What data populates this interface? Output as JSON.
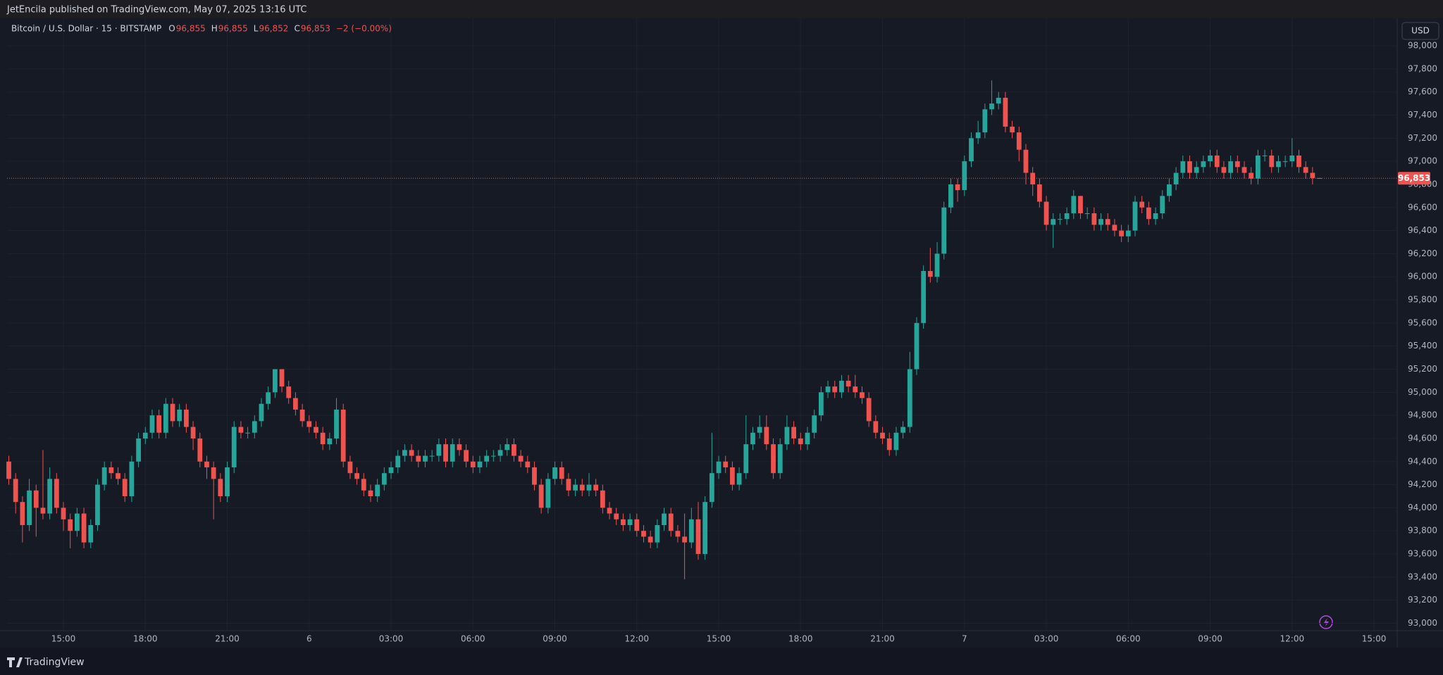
{
  "header": {
    "publisher": "JetEncila published on TradingView.com, May 07, 2025 13:16 UTC"
  },
  "footer": {
    "brand": "TradingView"
  },
  "chart_data": {
    "type": "candlestick",
    "title": "Bitcoin / U.S. Dollar · 15 · BITSTAMP",
    "legend_values": [
      {
        "label": "O",
        "value": "96,855"
      },
      {
        "label": "H",
        "value": "96,855"
      },
      {
        "label": "L",
        "value": "96,852"
      },
      {
        "label": "C",
        "value": "96,853"
      }
    ],
    "change": "−2 (−0.00%)",
    "currency": "USD",
    "up_color": "#26a69a",
    "down_color": "#ef5350",
    "grid": true,
    "open": [
      94400,
      94250,
      94050,
      93850,
      94150,
      94000,
      93950,
      94250,
      94000,
      93900,
      93800,
      93950,
      93700,
      93850,
      94200,
      94350,
      94300,
      94250,
      94100,
      94400,
      94600,
      94650,
      94800,
      94650,
      94900,
      94750,
      94850,
      94700,
      94600,
      94400,
      94350,
      94250,
      94100,
      94350,
      94700,
      94650,
      94650,
      94750,
      94900,
      95000,
      95200,
      95050,
      94950,
      94850,
      94750,
      94700,
      94650,
      94550,
      94600,
      94850,
      94400,
      94300,
      94250,
      94150,
      94100,
      94200,
      94300,
      94350,
      94450,
      94500,
      94450,
      94400,
      94450,
      94450,
      94550,
      94400,
      94550,
      94500,
      94400,
      94350,
      94400,
      94450,
      94450,
      94500,
      94550,
      94450,
      94400,
      94350,
      94200,
      94000,
      94250,
      94350,
      94250,
      94150,
      94200,
      94150,
      94200,
      94150,
      94000,
      93950,
      93900,
      93850,
      93900,
      93800,
      93750,
      93700,
      93850,
      93950,
      93800,
      93750,
      93700,
      93900,
      93600,
      94050,
      94300,
      94400,
      94350,
      94200,
      94300,
      94550,
      94650,
      94700,
      94550,
      94300,
      94550,
      94700,
      94600,
      94550,
      94650,
      94800,
      95000,
      95050,
      95000,
      95100,
      95050,
      95000,
      94950,
      94750,
      94650,
      94600,
      94500,
      94650,
      94700,
      95200,
      95600,
      96050,
      96000,
      96200,
      96600,
      96800,
      96750,
      97000,
      97200,
      97250,
      97450,
      97500,
      97550,
      97300,
      97250,
      97100,
      96900,
      96800,
      96650,
      96450,
      96500,
      96500,
      96550,
      96700,
      96550,
      96550,
      96450,
      96500,
      96450,
      96400,
      96350,
      96400,
      96650,
      96600,
      96500,
      96550,
      96700,
      96800,
      96900,
      97000,
      96900,
      96950,
      97000,
      97050,
      96950,
      96900,
      97000,
      96950,
      96900,
      96850,
      97050,
      97050,
      96950,
      97000,
      97000,
      97050,
      96950,
      96900,
      96855
    ],
    "high": [
      94450,
      94300,
      94100,
      94250,
      94200,
      94500,
      94350,
      94300,
      94050,
      93950,
      94000,
      94000,
      93900,
      94250,
      94400,
      94400,
      94350,
      94300,
      94450,
      94650,
      94700,
      94850,
      94850,
      94950,
      94950,
      94900,
      94900,
      94750,
      94650,
      94450,
      94400,
      94300,
      94400,
      94750,
      94750,
      94700,
      94800,
      94950,
      95050,
      95200,
      95200,
      95100,
      95000,
      94900,
      94800,
      94750,
      94700,
      94650,
      94950,
      94900,
      94450,
      94350,
      94300,
      94200,
      94250,
      94350,
      94400,
      94500,
      94550,
      94550,
      94500,
      94500,
      94500,
      94600,
      94600,
      94600,
      94600,
      94550,
      94450,
      94450,
      94500,
      94500,
      94550,
      94600,
      94600,
      94500,
      94450,
      94400,
      94250,
      94300,
      94400,
      94400,
      94300,
      94250,
      94250,
      94300,
      94250,
      94200,
      94050,
      94000,
      93950,
      93950,
      93950,
      93850,
      93800,
      93900,
      94000,
      94000,
      93850,
      93950,
      94000,
      94050,
      94100,
      94650,
      94450,
      94450,
      94400,
      94350,
      94800,
      94700,
      94800,
      94800,
      94600,
      94600,
      94800,
      94750,
      94650,
      94700,
      94850,
      95050,
      95100,
      95100,
      95150,
      95150,
      95150,
      95050,
      95000,
      94800,
      94700,
      94650,
      94700,
      94750,
      95350,
      95650,
      96100,
      96250,
      96300,
      96650,
      96850,
      96850,
      97050,
      97250,
      97350,
      97500,
      97700,
      97600,
      97600,
      97350,
      97300,
      97150,
      96950,
      96850,
      96700,
      96550,
      96550,
      96600,
      96750,
      96700,
      96600,
      96600,
      96550,
      96550,
      96500,
      96450,
      96450,
      96700,
      96700,
      96650,
      96600,
      96750,
      96850,
      96950,
      97050,
      97050,
      97000,
      97050,
      97100,
      97100,
      97000,
      97050,
      97050,
      97000,
      96950,
      97100,
      97100,
      97100,
      97050,
      97050,
      97200,
      97100,
      97000,
      96950,
      96855
    ],
    "low": [
      94200,
      93950,
      93700,
      93800,
      93750,
      93900,
      93900,
      93950,
      93800,
      93650,
      93750,
      93650,
      93650,
      93800,
      94150,
      94250,
      94200,
      94050,
      94050,
      94350,
      94550,
      94600,
      94600,
      94600,
      94700,
      94700,
      94650,
      94500,
      94350,
      94250,
      93900,
      94050,
      94050,
      94300,
      94600,
      94600,
      94600,
      94700,
      94850,
      94950,
      95000,
      94900,
      94800,
      94700,
      94650,
      94600,
      94500,
      94500,
      94550,
      94350,
      94250,
      94200,
      94100,
      94050,
      94050,
      94150,
      94250,
      94300,
      94400,
      94400,
      94350,
      94350,
      94400,
      94400,
      94350,
      94350,
      94450,
      94350,
      94300,
      94300,
      94350,
      94400,
      94400,
      94450,
      94400,
      94350,
      94300,
      94150,
      93950,
      93950,
      94200,
      94200,
      94100,
      94100,
      94100,
      94100,
      94100,
      93950,
      93900,
      93850,
      93800,
      93800,
      93750,
      93700,
      93650,
      93650,
      93800,
      93750,
      93700,
      93380,
      93650,
      93550,
      93550,
      94000,
      94250,
      94300,
      94150,
      94150,
      94250,
      94500,
      94600,
      94500,
      94250,
      94250,
      94500,
      94550,
      94500,
      94500,
      94600,
      94750,
      94950,
      94950,
      94950,
      95000,
      94950,
      94900,
      94700,
      94600,
      94550,
      94450,
      94450,
      94600,
      94650,
      95150,
      95550,
      95950,
      95950,
      96150,
      96550,
      96650,
      96700,
      96950,
      97150,
      97200,
      97400,
      97450,
      97250,
      97200,
      97000,
      96800,
      96700,
      96600,
      96400,
      96250,
      96450,
      96450,
      96500,
      96500,
      96500,
      96400,
      96400,
      96400,
      96350,
      96300,
      96300,
      96350,
      96550,
      96450,
      96450,
      96500,
      96650,
      96750,
      96850,
      96850,
      96850,
      96900,
      96950,
      96900,
      96850,
      96850,
      96900,
      96850,
      96800,
      96800,
      97000,
      96900,
      96900,
      96950,
      96950,
      96900,
      96850,
      96800,
      96852
    ],
    "close": [
      94250,
      94050,
      93850,
      94150,
      94000,
      93950,
      94250,
      94000,
      93900,
      93800,
      93950,
      93700,
      93850,
      94200,
      94350,
      94300,
      94250,
      94100,
      94400,
      94600,
      94650,
      94800,
      94650,
      94900,
      94750,
      94850,
      94700,
      94600,
      94400,
      94350,
      94250,
      94100,
      94350,
      94700,
      94650,
      94650,
      94750,
      94900,
      95000,
      95200,
      95050,
      94950,
      94850,
      94750,
      94700,
      94650,
      94550,
      94600,
      94850,
      94400,
      94300,
      94250,
      94150,
      94100,
      94200,
      94300,
      94350,
      94450,
      94500,
      94450,
      94400,
      94450,
      94450,
      94550,
      94400,
      94550,
      94500,
      94400,
      94350,
      94400,
      94450,
      94450,
      94500,
      94550,
      94450,
      94400,
      94350,
      94200,
      94000,
      94250,
      94350,
      94250,
      94150,
      94200,
      94150,
      94200,
      94150,
      94000,
      93950,
      93900,
      93850,
      93900,
      93800,
      93750,
      93700,
      93850,
      93950,
      93800,
      93750,
      93700,
      93900,
      93600,
      94050,
      94300,
      94400,
      94350,
      94200,
      94300,
      94550,
      94650,
      94700,
      94550,
      94300,
      94550,
      94700,
      94600,
      94550,
      94650,
      94800,
      95000,
      95050,
      95000,
      95100,
      95050,
      95000,
      94950,
      94750,
      94650,
      94600,
      94500,
      94650,
      94700,
      95200,
      95600,
      96050,
      96000,
      96200,
      96600,
      96800,
      96750,
      97000,
      97200,
      97250,
      97450,
      97500,
      97550,
      97300,
      97250,
      97100,
      96900,
      96800,
      96650,
      96450,
      96500,
      96500,
      96550,
      96700,
      96550,
      96550,
      96450,
      96500,
      96450,
      96400,
      96350,
      96400,
      96650,
      96600,
      96500,
      96550,
      96700,
      96800,
      96900,
      97000,
      96900,
      96950,
      97000,
      97050,
      96950,
      96900,
      97000,
      96950,
      96900,
      96850,
      97050,
      97050,
      96950,
      97000,
      97000,
      97050,
      96950,
      96900,
      96855,
      96853
    ],
    "last_price": {
      "value": 96853,
      "label": "96,853"
    },
    "xlim": [
      -0.26,
      203.4
    ],
    "xticks": [
      {
        "value": 8,
        "label": "15:00"
      },
      {
        "value": 20,
        "label": "18:00"
      },
      {
        "value": 32,
        "label": "21:00"
      },
      {
        "value": 44,
        "label": "6"
      },
      {
        "value": 56,
        "label": "03:00"
      },
      {
        "value": 68,
        "label": "06:00"
      },
      {
        "value": 80,
        "label": "09:00"
      },
      {
        "value": 92,
        "label": "12:00"
      },
      {
        "value": 104,
        "label": "15:00"
      },
      {
        "value": 116,
        "label": "18:00"
      },
      {
        "value": 128,
        "label": "21:00"
      },
      {
        "value": 140,
        "label": "7"
      },
      {
        "value": 152,
        "label": "03:00"
      },
      {
        "value": 164,
        "label": "06:00"
      },
      {
        "value": 176,
        "label": "09:00"
      },
      {
        "value": 188,
        "label": "12:00"
      },
      {
        "value": 200,
        "label": "15:00"
      }
    ],
    "ylim": [
      92936,
      98238
    ],
    "yticks": [
      {
        "value": 93000,
        "label": "93,000"
      },
      {
        "value": 93200,
        "label": "93,200"
      },
      {
        "value": 93400,
        "label": "93,400"
      },
      {
        "value": 93600,
        "label": "93,600"
      },
      {
        "value": 93800,
        "label": "93,800"
      },
      {
        "value": 94000,
        "label": "94,000"
      },
      {
        "value": 94200,
        "label": "94,200"
      },
      {
        "value": 94400,
        "label": "94,400"
      },
      {
        "value": 94600,
        "label": "94,600"
      },
      {
        "value": 94800,
        "label": "94,800"
      },
      {
        "value": 95000,
        "label": "95,000"
      },
      {
        "value": 95200,
        "label": "95,200"
      },
      {
        "value": 95400,
        "label": "95,400"
      },
      {
        "value": 95600,
        "label": "95,600"
      },
      {
        "value": 95800,
        "label": "95,800"
      },
      {
        "value": 96000,
        "label": "96,000"
      },
      {
        "value": 96200,
        "label": "96,200"
      },
      {
        "value": 96400,
        "label": "96,400"
      },
      {
        "value": 96600,
        "label": "96,600"
      },
      {
        "value": 96800,
        "label": "96,800"
      },
      {
        "value": 97000,
        "label": "97,000"
      },
      {
        "value": 97200,
        "label": "97,200"
      },
      {
        "value": 97400,
        "label": "97,400"
      },
      {
        "value": 97600,
        "label": "97,600"
      },
      {
        "value": 97800,
        "label": "97,800"
      },
      {
        "value": 98000,
        "label": "98,000"
      }
    ]
  }
}
